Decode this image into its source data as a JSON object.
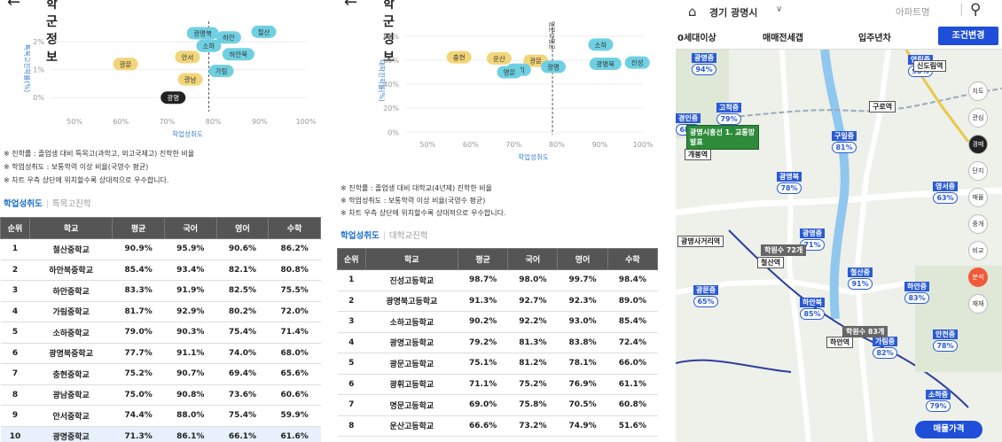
{
  "panel1": {
    "title": "학군정보",
    "back_icon": "←",
    "chart_data": {
      "type": "scatter",
      "xlabel": "학업성취도",
      "ylabel": "특목고진학률(%)",
      "xlim": [
        0.45,
        1.0
      ],
      "ylim": [
        -0.5,
        2.6
      ],
      "xticks": [
        "50%",
        "60%",
        "70%",
        "80%",
        "90%",
        "100%"
      ],
      "yticks": [
        "0%",
        "1%",
        "2%"
      ],
      "reference_x": 0.79,
      "points": [
        {
          "name": "광명북",
          "x": 0.777,
          "y": 2.3,
          "color": "#6fd0e2"
        },
        {
          "name": "철산",
          "x": 0.909,
          "y": 2.35,
          "color": "#6fd0e2"
        },
        {
          "name": "하안",
          "x": 0.833,
          "y": 2.15,
          "color": "#6fd0e2"
        },
        {
          "name": "소하",
          "x": 0.79,
          "y": 1.85,
          "color": "#6fd0e2"
        },
        {
          "name": "안서",
          "x": 0.744,
          "y": 1.45,
          "color": "#f2d579"
        },
        {
          "name": "하안북",
          "x": 0.854,
          "y": 1.55,
          "color": "#6fd0e2"
        },
        {
          "name": "광문",
          "x": 0.61,
          "y": 1.2,
          "color": "#f2d579"
        },
        {
          "name": "가림",
          "x": 0.817,
          "y": 0.95,
          "color": "#6fd0e2"
        },
        {
          "name": "광남",
          "x": 0.75,
          "y": 0.65,
          "color": "#f2d579"
        },
        {
          "name": "광명",
          "x": 0.713,
          "y": 0.0,
          "color": "#222222"
        }
      ]
    },
    "notes": [
      "※ 진학률 : 졸업생 대비 특목고(과학고, 외고국제고) 진학한 비율",
      "※ 학업성취도 : 보통학력 이상 비율(국영수 평균)",
      "※ 차트 우측 상단에 위치할수록 상대적으로 우수합니다."
    ],
    "tab_active": "학업성취도",
    "tab_inactive": "특목고진학",
    "columns": [
      "순위",
      "학교",
      "평균",
      "국어",
      "영어",
      "수학"
    ],
    "rows": [
      [
        "1",
        "철산중학교",
        "90.9%",
        "95.9%",
        "90.6%",
        "86.2%"
      ],
      [
        "2",
        "하안북중학교",
        "85.4%",
        "93.4%",
        "82.1%",
        "80.8%"
      ],
      [
        "3",
        "하안중학교",
        "83.3%",
        "91.9%",
        "82.5%",
        "75.5%"
      ],
      [
        "4",
        "가림중학교",
        "81.7%",
        "92.9%",
        "80.2%",
        "72.0%"
      ],
      [
        "5",
        "소하중학교",
        "79.0%",
        "90.3%",
        "75.4%",
        "71.4%"
      ],
      [
        "6",
        "광명북중학교",
        "77.7%",
        "91.1%",
        "74.0%",
        "68.0%"
      ],
      [
        "7",
        "충현중학교",
        "75.2%",
        "90.7%",
        "69.4%",
        "65.6%"
      ],
      [
        "8",
        "광남중학교",
        "75.0%",
        "90.8%",
        "73.6%",
        "60.6%"
      ],
      [
        "9",
        "안서중학교",
        "74.4%",
        "88.0%",
        "75.4%",
        "59.9%"
      ],
      [
        "10",
        "광명중학교",
        "71.3%",
        "86.1%",
        "66.1%",
        "61.6%"
      ]
    ]
  },
  "panel2": {
    "title": "학군정보",
    "back_icon": "←",
    "chart_data": {
      "type": "scatter",
      "xlabel": "학업성취도",
      "ylabel": "대학진학률(%)",
      "xlim": [
        0.45,
        1.0
      ],
      "ylim": [
        -0.02,
        0.88
      ],
      "xticks": [
        "50%",
        "60%",
        "70%",
        "80%",
        "90%",
        "100%"
      ],
      "yticks": [
        "0%",
        "20%",
        "40%",
        "60%",
        "80%"
      ],
      "reference_x": 0.79,
      "vertical_label": "명문고평균",
      "points": [
        {
          "name": "소하",
          "x": 0.902,
          "y": 0.73,
          "color": "#6fd0e2"
        },
        {
          "name": "충현",
          "x": 0.573,
          "y": 0.625,
          "color": "#f2d579"
        },
        {
          "name": "운산",
          "x": 0.666,
          "y": 0.615,
          "color": "#f2d579"
        },
        {
          "name": "광문",
          "x": 0.751,
          "y": 0.595,
          "color": "#f2d579"
        },
        {
          "name": "광휘",
          "x": 0.711,
          "y": 0.52,
          "color": "#6fd0e2"
        },
        {
          "name": "명문",
          "x": 0.69,
          "y": 0.5,
          "color": "#6fd0e2"
        },
        {
          "name": "광명",
          "x": 0.792,
          "y": 0.545,
          "color": "#6fd0e2"
        },
        {
          "name": "광명북",
          "x": 0.913,
          "y": 0.57,
          "color": "#6fd0e2"
        },
        {
          "name": "진성",
          "x": 0.987,
          "y": 0.58,
          "color": "#6fd0e2"
        }
      ]
    },
    "notes": [
      "※ 진학률 : 졸업생 대비 대학교(4년제) 진학한 비율",
      "※ 학업성취도 : 보통학력 이상 비율(국영수 평균)",
      "※ 차트 우측 상단에 위치할수록 상대적으로 우수합니다."
    ],
    "tab_active": "학업성취도",
    "tab_inactive": "대학교진학",
    "columns": [
      "순위",
      "학교",
      "평균",
      "국어",
      "영어",
      "수학"
    ],
    "rows": [
      [
        "1",
        "진성고등학교",
        "98.7%",
        "98.0%",
        "99.7%",
        "98.4%"
      ],
      [
        "2",
        "광명북고등학교",
        "91.3%",
        "92.7%",
        "92.3%",
        "89.0%"
      ],
      [
        "3",
        "소하고등학교",
        "90.2%",
        "92.2%",
        "93.0%",
        "85.4%"
      ],
      [
        "4",
        "광명고등학교",
        "79.2%",
        "81.3%",
        "83.8%",
        "72.4%"
      ],
      [
        "5",
        "광문고등학교",
        "75.1%",
        "81.2%",
        "78.1%",
        "66.0%"
      ],
      [
        "6",
        "광휘고등학교",
        "71.1%",
        "75.2%",
        "76.9%",
        "61.1%"
      ],
      [
        "7",
        "명문고등학교",
        "69.0%",
        "75.8%",
        "70.5%",
        "60.8%"
      ],
      [
        "8",
        "운산고등학교",
        "66.6%",
        "73.2%",
        "74.9%",
        "51.6%"
      ],
      [
        "9",
        "충현고등학교",
        "57.3%",
        "60.8%",
        "61.8%",
        "49.4%"
      ]
    ]
  },
  "panel3": {
    "location": "경기 광명시",
    "apt_placeholder": "아파트명",
    "filters": [
      "0세대이상",
      "매매전세갭",
      "입주년차"
    ],
    "filter_button": "조건변경",
    "side": [
      "지도",
      "관심",
      "경매",
      "단지",
      "매물",
      "중개",
      "비교",
      "분석",
      "재재"
    ],
    "schools": [
      {
        "nm": "광명중",
        "pct": "94%"
      },
      {
        "nm": "고척중",
        "pct": "79%"
      },
      {
        "nm": "경인중",
        "pct": "68%"
      },
      {
        "nm": "구일중",
        "pct": "81%"
      },
      {
        "nm": "광명북",
        "pct": "78%"
      },
      {
        "nm": "영서중",
        "pct": "63%"
      },
      {
        "nm": "광명중",
        "pct": "71%"
      },
      {
        "nm": "철산중",
        "pct": "91%"
      },
      {
        "nm": "하안중",
        "pct": "83%"
      },
      {
        "nm": "광문중",
        "pct": "65%"
      },
      {
        "nm": "하안북",
        "pct": "85%"
      },
      {
        "nm": "가림중",
        "pct": "82%"
      },
      {
        "nm": "안천중",
        "pct": "78%"
      },
      {
        "nm": "소하중",
        "pct": "79%"
      },
      {
        "nm": "영림중",
        "pct": "90%"
      }
    ],
    "stations": [
      "신도림역",
      "구로역",
      "광명사거리역",
      "철산역",
      "하안역",
      "개봉역"
    ],
    "clusters": [
      "학원수 72개",
      "학원수 83개"
    ],
    "bus_label": "광명시흥선 1. 교통망발표",
    "bottom_button": "매물가격"
  }
}
